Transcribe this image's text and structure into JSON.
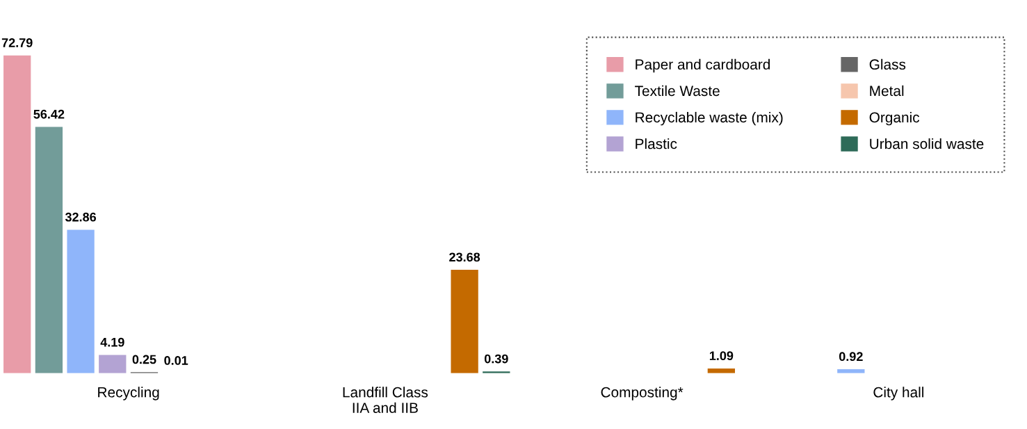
{
  "chart_data": {
    "type": "bar",
    "categories": [
      "Recycling",
      "Landfill Class\nIIA and IIB",
      "Composting*",
      "City hall"
    ],
    "series": [
      {
        "name": "Paper and cardboard",
        "color": "#e89ca8",
        "values": [
          72.79,
          null,
          null,
          null
        ]
      },
      {
        "name": "Textile Waste",
        "color": "#729c99",
        "values": [
          56.42,
          null,
          null,
          null
        ]
      },
      {
        "name": "Recyclable waste (mix)",
        "color": "#8fb5fa",
        "values": [
          32.86,
          null,
          null,
          0.92
        ]
      },
      {
        "name": "Plastic",
        "color": "#b3a3d3",
        "values": [
          4.19,
          null,
          null,
          null
        ]
      },
      {
        "name": "Glass",
        "color": "#666666",
        "values": [
          0.25,
          null,
          null,
          null
        ]
      },
      {
        "name": "Metal",
        "color": "#f6c6ad",
        "values": [
          0.01,
          null,
          null,
          null
        ]
      },
      {
        "name": "Organic",
        "color": "#c46a00",
        "values": [
          null,
          23.68,
          1.09,
          null
        ]
      },
      {
        "name": "Urban solid waste",
        "color": "#2e6b58",
        "values": [
          null,
          0.39,
          null,
          null
        ]
      }
    ],
    "data_labels": true,
    "legend": "top right",
    "grid": false
  }
}
